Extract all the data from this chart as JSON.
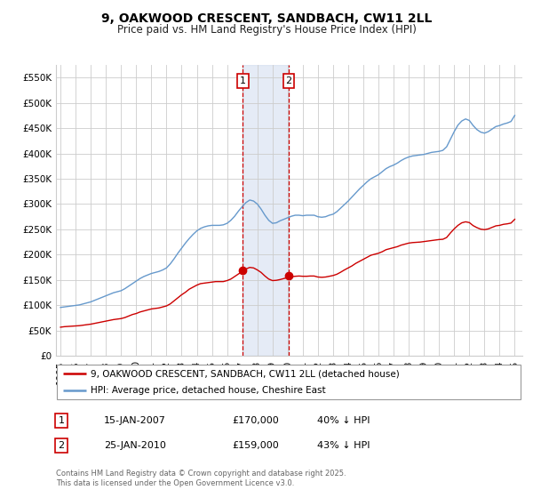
{
  "title": "9, OAKWOOD CRESCENT, SANDBACH, CW11 2LL",
  "subtitle": "Price paid vs. HM Land Registry's House Price Index (HPI)",
  "background_color": "#ffffff",
  "plot_bg_color": "#ffffff",
  "grid_color": "#cccccc",
  "ylim": [
    0,
    575000
  ],
  "yticks": [
    0,
    50000,
    100000,
    150000,
    200000,
    250000,
    300000,
    350000,
    400000,
    450000,
    500000,
    550000
  ],
  "ytick_labels": [
    "£0",
    "£50K",
    "£100K",
    "£150K",
    "£200K",
    "£250K",
    "£300K",
    "£350K",
    "£400K",
    "£450K",
    "£500K",
    "£550K"
  ],
  "xlim_start": 1994.7,
  "xlim_end": 2025.5,
  "xticks": [
    1995,
    1996,
    1997,
    1998,
    1999,
    2000,
    2001,
    2002,
    2003,
    2004,
    2005,
    2006,
    2007,
    2008,
    2009,
    2010,
    2011,
    2012,
    2013,
    2014,
    2015,
    2016,
    2017,
    2018,
    2019,
    2020,
    2021,
    2022,
    2023,
    2024,
    2025
  ],
  "sale1_x": 2007.04,
  "sale1_y": 170000,
  "sale1_label": "1",
  "sale2_x": 2010.07,
  "sale2_y": 159000,
  "sale2_label": "2",
  "shade_x1": 2007.04,
  "shade_x2": 2010.07,
  "red_line_color": "#cc0000",
  "blue_line_color": "#6699cc",
  "legend_label_red": "9, OAKWOOD CRESCENT, SANDBACH, CW11 2LL (detached house)",
  "legend_label_blue": "HPI: Average price, detached house, Cheshire East",
  "table_data": [
    {
      "num": "1",
      "date": "15-JAN-2007",
      "price": "£170,000",
      "hpi": "40% ↓ HPI"
    },
    {
      "num": "2",
      "date": "25-JAN-2010",
      "price": "£159,000",
      "hpi": "43% ↓ HPI"
    }
  ],
  "footnote": "Contains HM Land Registry data © Crown copyright and database right 2025.\nThis data is licensed under the Open Government Licence v3.0.",
  "hpi_data_x": [
    1995.0,
    1995.25,
    1995.5,
    1995.75,
    1996.0,
    1996.25,
    1996.5,
    1996.75,
    1997.0,
    1997.25,
    1997.5,
    1997.75,
    1998.0,
    1998.25,
    1998.5,
    1998.75,
    1999.0,
    1999.25,
    1999.5,
    1999.75,
    2000.0,
    2000.25,
    2000.5,
    2000.75,
    2001.0,
    2001.25,
    2001.5,
    2001.75,
    2002.0,
    2002.25,
    2002.5,
    2002.75,
    2003.0,
    2003.25,
    2003.5,
    2003.75,
    2004.0,
    2004.25,
    2004.5,
    2004.75,
    2005.0,
    2005.25,
    2005.5,
    2005.75,
    2006.0,
    2006.25,
    2006.5,
    2006.75,
    2007.0,
    2007.25,
    2007.5,
    2007.75,
    2008.0,
    2008.25,
    2008.5,
    2008.75,
    2009.0,
    2009.25,
    2009.5,
    2009.75,
    2010.0,
    2010.25,
    2010.5,
    2010.75,
    2011.0,
    2011.25,
    2011.5,
    2011.75,
    2012.0,
    2012.25,
    2012.5,
    2012.75,
    2013.0,
    2013.25,
    2013.5,
    2013.75,
    2014.0,
    2014.25,
    2014.5,
    2014.75,
    2015.0,
    2015.25,
    2015.5,
    2015.75,
    2016.0,
    2016.25,
    2016.5,
    2016.75,
    2017.0,
    2017.25,
    2017.5,
    2017.75,
    2018.0,
    2018.25,
    2018.5,
    2018.75,
    2019.0,
    2019.25,
    2019.5,
    2019.75,
    2020.0,
    2020.25,
    2020.5,
    2020.75,
    2021.0,
    2021.25,
    2021.5,
    2021.75,
    2022.0,
    2022.25,
    2022.5,
    2022.75,
    2023.0,
    2023.25,
    2023.5,
    2023.75,
    2024.0,
    2024.25,
    2024.5,
    2024.75,
    2025.0
  ],
  "hpi_data_y": [
    96000,
    97000,
    98000,
    99000,
    100000,
    101000,
    103000,
    105000,
    107000,
    110000,
    113000,
    116000,
    119000,
    122000,
    125000,
    127000,
    129000,
    133000,
    138000,
    143000,
    148000,
    153000,
    157000,
    160000,
    163000,
    165000,
    167000,
    170000,
    174000,
    182000,
    192000,
    203000,
    213000,
    223000,
    232000,
    240000,
    247000,
    252000,
    255000,
    257000,
    258000,
    258000,
    258000,
    259000,
    262000,
    268000,
    276000,
    286000,
    295000,
    303000,
    308000,
    306000,
    300000,
    290000,
    278000,
    268000,
    262000,
    263000,
    267000,
    270000,
    273000,
    276000,
    278000,
    278000,
    277000,
    278000,
    278000,
    278000,
    275000,
    274000,
    275000,
    278000,
    280000,
    285000,
    292000,
    299000,
    306000,
    314000,
    322000,
    330000,
    337000,
    344000,
    350000,
    354000,
    358000,
    364000,
    370000,
    374000,
    377000,
    381000,
    386000,
    390000,
    393000,
    395000,
    396000,
    397000,
    398000,
    400000,
    402000,
    403000,
    404000,
    406000,
    413000,
    428000,
    443000,
    456000,
    464000,
    468000,
    465000,
    455000,
    447000,
    442000,
    440000,
    443000,
    448000,
    453000,
    455000,
    458000,
    460000,
    463000,
    475000
  ],
  "red_data_x": [
    1995.0,
    1995.25,
    1995.5,
    1995.75,
    1996.0,
    1996.25,
    1996.5,
    1996.75,
    1997.0,
    1997.25,
    1997.5,
    1997.75,
    1998.0,
    1998.25,
    1998.5,
    1998.75,
    1999.0,
    1999.25,
    1999.5,
    1999.75,
    2000.0,
    2000.25,
    2000.5,
    2000.75,
    2001.0,
    2001.25,
    2001.5,
    2001.75,
    2002.0,
    2002.25,
    2002.5,
    2002.75,
    2003.0,
    2003.25,
    2003.5,
    2003.75,
    2004.0,
    2004.25,
    2004.5,
    2004.75,
    2005.0,
    2005.25,
    2005.5,
    2005.75,
    2006.0,
    2006.25,
    2006.5,
    2006.75,
    2007.0,
    2007.25,
    2007.5,
    2007.75,
    2008.0,
    2008.25,
    2008.5,
    2008.75,
    2009.0,
    2009.25,
    2009.5,
    2009.75,
    2010.0,
    2010.25,
    2010.5,
    2010.75,
    2011.0,
    2011.25,
    2011.5,
    2011.75,
    2012.0,
    2012.25,
    2012.5,
    2012.75,
    2013.0,
    2013.25,
    2013.5,
    2013.75,
    2014.0,
    2014.25,
    2014.5,
    2014.75,
    2015.0,
    2015.25,
    2015.5,
    2015.75,
    2016.0,
    2016.25,
    2016.5,
    2016.75,
    2017.0,
    2017.25,
    2017.5,
    2017.75,
    2018.0,
    2018.25,
    2018.5,
    2018.75,
    2019.0,
    2019.25,
    2019.5,
    2019.75,
    2020.0,
    2020.25,
    2020.5,
    2020.75,
    2021.0,
    2021.25,
    2021.5,
    2021.75,
    2022.0,
    2022.25,
    2022.5,
    2022.75,
    2023.0,
    2023.25,
    2023.5,
    2023.75,
    2024.0,
    2024.25,
    2024.5,
    2024.75,
    2025.0
  ],
  "red_data_y": [
    57000,
    58000,
    58500,
    59000,
    59500,
    60000,
    61000,
    62000,
    63000,
    64500,
    66000,
    67500,
    69000,
    70500,
    72000,
    73000,
    74000,
    76000,
    79000,
    82000,
    84000,
    87000,
    89000,
    91000,
    93000,
    94000,
    95000,
    97000,
    99000,
    103000,
    109000,
    115000,
    121000,
    126000,
    132000,
    136000,
    140000,
    143000,
    144000,
    145000,
    146000,
    147000,
    147000,
    147000,
    149000,
    152000,
    157000,
    162000,
    167000,
    172000,
    175000,
    174000,
    170000,
    165000,
    158000,
    152000,
    149000,
    149500,
    151000,
    153000,
    155000,
    156500,
    157500,
    158000,
    157500,
    157500,
    158000,
    158000,
    156000,
    155500,
    156000,
    157500,
    159000,
    161500,
    165500,
    170000,
    174000,
    178000,
    183000,
    187000,
    191000,
    195000,
    199000,
    201000,
    203000,
    206000,
    210000,
    212000,
    214000,
    216000,
    219000,
    221000,
    223000,
    224000,
    224500,
    225000,
    226000,
    227000,
    228000,
    229000,
    230000,
    230500,
    234000,
    243000,
    251000,
    258000,
    263000,
    265000,
    263500,
    257500,
    253500,
    250500,
    249500,
    251000,
    254000,
    257000,
    258000,
    260000,
    261000,
    262500,
    270000
  ]
}
